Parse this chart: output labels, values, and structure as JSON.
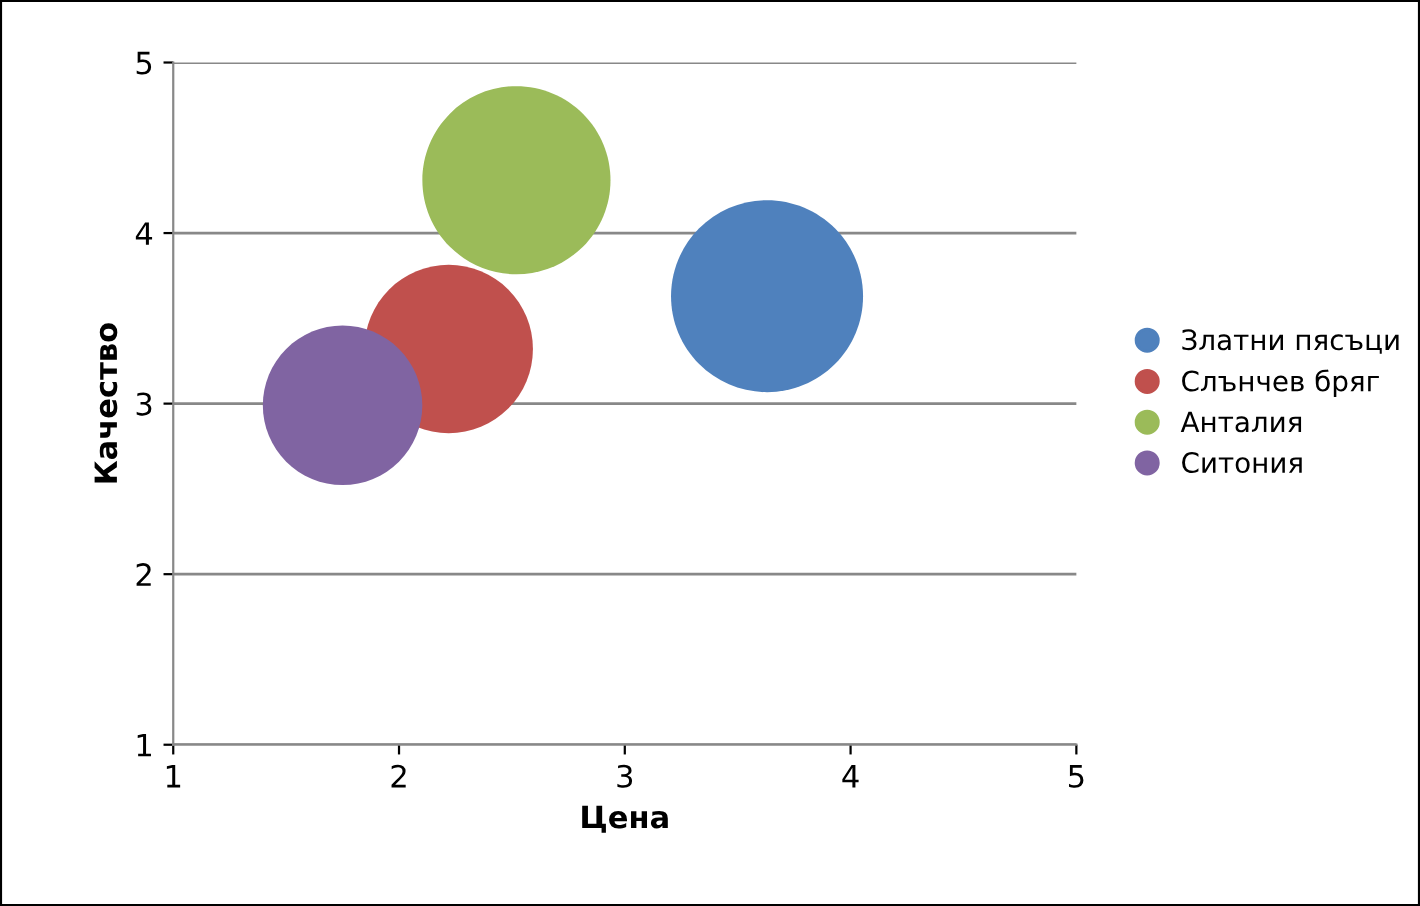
{
  "chart_data": {
    "type": "bubble",
    "xlabel": "Цена",
    "ylabel": "Качество",
    "xlim": [
      1,
      5
    ],
    "xticks": [
      1,
      2,
      3,
      4,
      5
    ],
    "ylim": [
      1,
      5
    ],
    "yticks": [
      1,
      2,
      3,
      4,
      5
    ],
    "grid": "y",
    "legend": "right",
    "series": [
      {
        "name": "Златни пясъци",
        "color": "#4f81bd",
        "x": [
          3.63
        ],
        "values": [
          3.63
        ],
        "sizes": [
          1
        ]
      },
      {
        "name": "Слънчев бряг",
        "color": "#c0504d",
        "x": [
          2.22
        ],
        "values": [
          3.32
        ],
        "sizes": [
          0.77
        ]
      },
      {
        "name": "Анталия",
        "color": "#9bbb59",
        "x": [
          2.52
        ],
        "values": [
          4.31
        ],
        "sizes": [
          0.96
        ]
      },
      {
        "name": "Ситония",
        "color": "#8064a2",
        "x": [
          1.75
        ],
        "values": [
          2.99
        ],
        "sizes": [
          0.69
        ]
      }
    ]
  }
}
